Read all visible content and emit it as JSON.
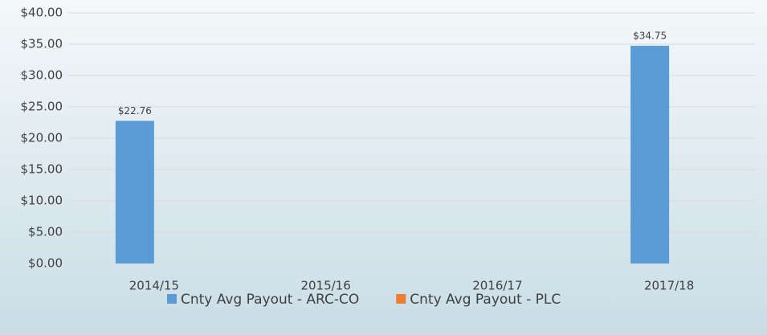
{
  "chart_data": {
    "type": "bar",
    "categories": [
      "2014/15",
      "2015/16",
      "2016/17",
      "2017/18"
    ],
    "series": [
      {
        "name": "Cnty Avg Payout - ARC-CO",
        "color": "#5b9bd5",
        "values": [
          22.76,
          null,
          null,
          34.75
        ],
        "value_labels": [
          "$22.76",
          null,
          null,
          "$34.75"
        ]
      },
      {
        "name": "Cnty Avg Payout - PLC",
        "color": "#ed7d31",
        "values": [
          null,
          null,
          null,
          null
        ]
      }
    ],
    "ylim": [
      0,
      40
    ],
    "yticks": [
      {
        "value": 0,
        "label": "$0.00"
      },
      {
        "value": 5,
        "label": "$5.00"
      },
      {
        "value": 10,
        "label": "$10.00"
      },
      {
        "value": 15,
        "label": "$15.00"
      },
      {
        "value": 20,
        "label": "$20.00"
      },
      {
        "value": 25,
        "label": "$25.00"
      },
      {
        "value": 30,
        "label": "$30.00"
      },
      {
        "value": 35,
        "label": "$35.00"
      },
      {
        "value": 40,
        "label": "$40.00"
      }
    ],
    "grid": true,
    "legend": "bottom"
  }
}
